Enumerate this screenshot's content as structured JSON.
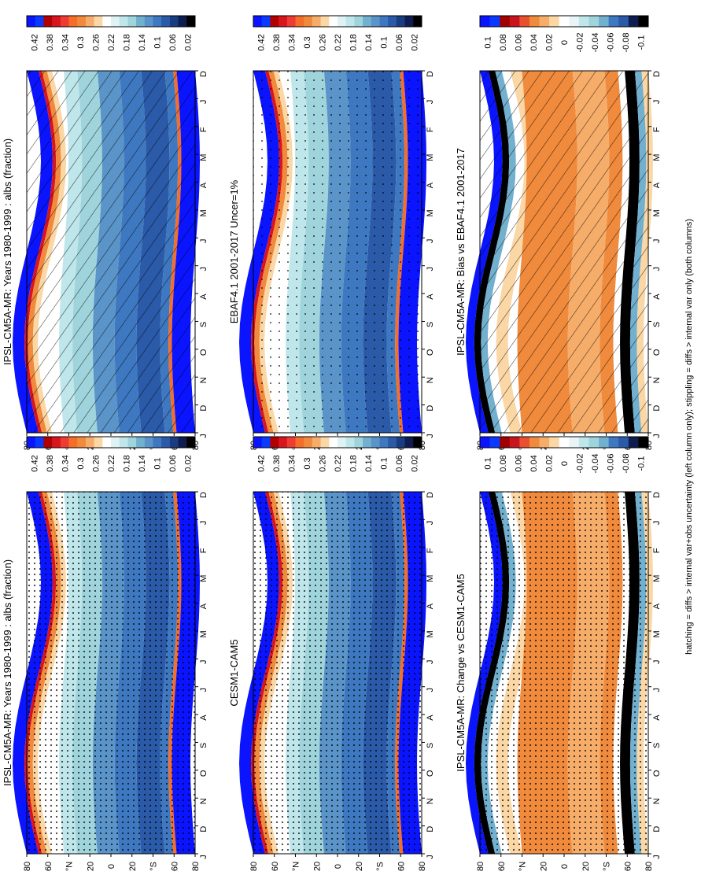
{
  "figure": {
    "footer": "hatching = diffs > internal var+obs uncertainty (left column only); stippling = diffs > internal var only (both columns)"
  },
  "colors": {
    "abs_scale": [
      "#0a14ff",
      "#0a3aff",
      "#b00000",
      "#d8141e",
      "#ee3c32",
      "#f46e2a",
      "#f08a3c",
      "#f6ad6a",
      "#fbd7a6",
      "#ffffff",
      "#dff2f4",
      "#bfe6ea",
      "#9fd4dc",
      "#72b0d0",
      "#5a94c8",
      "#3e78c0",
      "#2a5aa8",
      "#1a3c80",
      "#0e1c50",
      "#000000"
    ],
    "diff_scale": [
      "#0a14ff",
      "#0a3aff",
      "#a00000",
      "#c8141e",
      "#e8502e",
      "#f08a3c",
      "#f6ad6a",
      "#fbd7a6",
      "#ffffff",
      "#e8f4f6",
      "#bfe6ea",
      "#9fd4dc",
      "#72b0d0",
      "#3e78c0",
      "#2a5aa8",
      "#0e1c50",
      "#000000"
    ]
  },
  "panels": [
    {
      "id": "model",
      "title": "IPSL-CM5A-MR: Years 1980-1999 : albs (fraction)",
      "colorbar": [
        "0.42",
        "0.38",
        "0.34",
        "0.3",
        "0.26",
        "0.22",
        "0.18",
        "0.14",
        "0.1",
        "0.06",
        "0.02"
      ],
      "hatch": "hatching"
    },
    {
      "id": "obs",
      "title": "EBAF4.1 2001-2017 Uncer=1%",
      "colorbar": [
        "0.42",
        "0.38",
        "0.34",
        "0.3",
        "0.26",
        "0.22",
        "0.18",
        "0.14",
        "0.1",
        "0.06",
        "0.02"
      ],
      "hatch": "stipple-sparse"
    },
    {
      "id": "bias",
      "title": "IPSL-CM5A-MR: Bias vs EBAF4.1 2001-2017",
      "colorbar": [
        "0.1",
        "0.08",
        "0.06",
        "0.04",
        "0.02",
        "0",
        "-0.02",
        "-0.04",
        "-0.06",
        "-0.08",
        "-0.1"
      ],
      "hatch": "hatching"
    },
    {
      "id": "model2",
      "title": "IPSL-CM5A-MR: Years 1980-1999 : albs (fraction)",
      "colorbar": [
        "0.42",
        "0.38",
        "0.34",
        "0.3",
        "0.26",
        "0.22",
        "0.18",
        "0.14",
        "0.1",
        "0.06",
        "0.02"
      ],
      "hatch": "stipple"
    },
    {
      "id": "cesm",
      "title": "CESM1-CAM5",
      "colorbar": [
        "0.42",
        "0.38",
        "0.34",
        "0.3",
        "0.26",
        "0.22",
        "0.18",
        "0.14",
        "0.1",
        "0.06",
        "0.02"
      ],
      "hatch": "stipple"
    },
    {
      "id": "change",
      "title": "IPSL-CM5A-MR: Change vs CESM1-CAM5",
      "colorbar": [
        "0.1",
        "0.08",
        "0.06",
        "0.04",
        "0.02",
        "0",
        "-0.02",
        "-0.04",
        "-0.06",
        "-0.08",
        "-0.1"
      ],
      "hatch": "stipple"
    }
  ],
  "chart_data": {
    "type": "heatmap",
    "x": [
      "D",
      "J",
      "F",
      "M",
      "A",
      "M",
      "J",
      "J",
      "A",
      "S",
      "O",
      "N",
      "D",
      "J"
    ],
    "y_ticks": [
      "80",
      "60",
      "°N",
      "20",
      "0",
      "20",
      "°S",
      "60",
      "80"
    ],
    "y_values": [
      80,
      60,
      40,
      20,
      0,
      -20,
      -40,
      -60,
      -80
    ],
    "ylim": [
      -90,
      90
    ],
    "absolute_levels": [
      0.42,
      0.38,
      0.34,
      0.3,
      0.26,
      0.22,
      0.18,
      0.14,
      0.1,
      0.06,
      0.02
    ],
    "difference_levels": [
      0.1,
      0.08,
      0.06,
      0.04,
      0.02,
      0,
      -0.02,
      -0.04,
      -0.06,
      -0.08,
      -0.1
    ],
    "orientation": "rotated 90° (portrait page)"
  }
}
